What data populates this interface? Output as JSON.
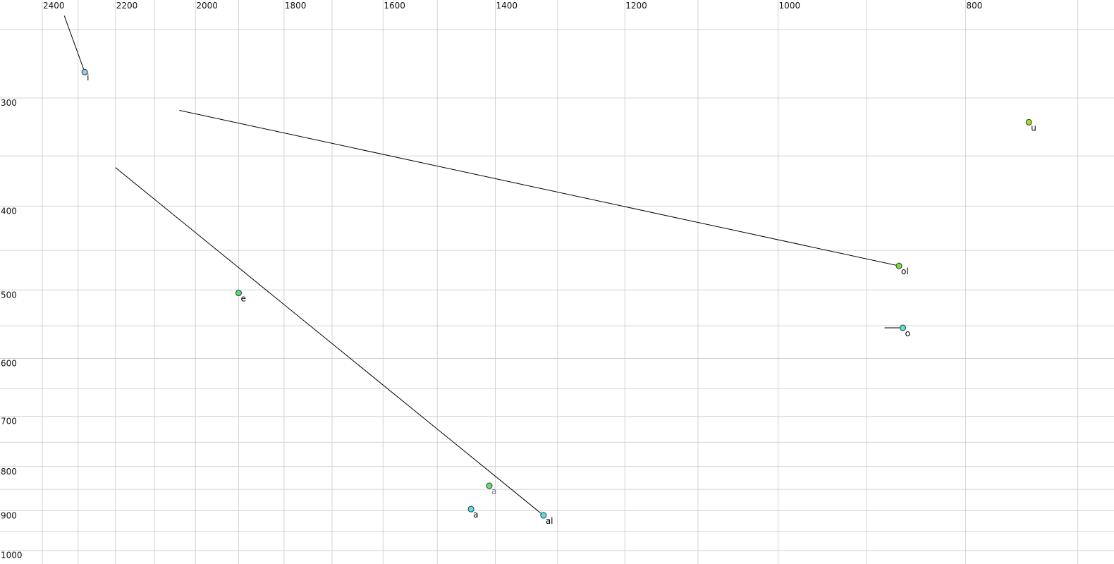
{
  "chart_data": {
    "type": "scatter",
    "title": "",
    "xlabel": "",
    "ylabel": "",
    "x_axis": {
      "position": "top",
      "scale": "log",
      "reversed": true,
      "range": [
        2400,
        678
      ],
      "tick_labels": [
        2400,
        2200,
        2000,
        1800,
        1600,
        1400,
        1200,
        1000,
        800
      ],
      "grid_step": 100
    },
    "y_axis": {
      "position": "left",
      "scale": "log",
      "reversed": false,
      "range": [
        250,
        1000
      ],
      "tick_labels": [
        300,
        400,
        500,
        600,
        700,
        800,
        900,
        1000
      ],
      "grid_step": 50
    },
    "grid": true,
    "grid_color": "#d4d4d4",
    "points": [
      {
        "label": "i",
        "x": 2282,
        "y": 280,
        "color": "#9cc8f0",
        "label_color": "#000000",
        "trail_from": {
          "x": 2338,
          "y": 241
        }
      },
      {
        "label": "u",
        "x": 742,
        "y": 320,
        "color": "#9be030",
        "label_color": "#000000"
      },
      {
        "label": "ol",
        "x": 866,
        "y": 469,
        "color": "#7ee030",
        "label_color": "#000000",
        "trail_from": {
          "x": 2039,
          "y": 310
        }
      },
      {
        "label": "o",
        "x": 862,
        "y": 553,
        "color": "#50e0d0",
        "label_color": "#000000",
        "trail_from": {
          "x": 881,
          "y": 553
        }
      },
      {
        "label": "e",
        "x": 1900,
        "y": 504,
        "color": "#50e070",
        "label_color": "#000000"
      },
      {
        "label": "a",
        "x": 1410,
        "y": 842,
        "color": "#60e070",
        "label_color": "#777788"
      },
      {
        "label": "a",
        "x": 1441,
        "y": 896,
        "color": "#50e8f0",
        "label_color": "#000000"
      },
      {
        "label": "al",
        "x": 1322,
        "y": 911,
        "color": "#50e0f0",
        "label_color": "#000000",
        "trail_from": {
          "x": 2200,
          "y": 361
        }
      }
    ]
  }
}
